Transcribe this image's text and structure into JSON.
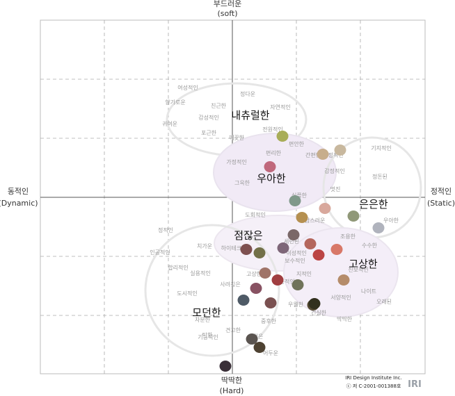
{
  "axes": {
    "top": {
      "line1": "부드러운",
      "line2": "(soft)"
    },
    "bottom": {
      "line1": "딱딱한",
      "line2": "(Hard)"
    },
    "left": {
      "line1": "동적인",
      "line2": "(Dynamic)"
    },
    "right": {
      "line1": "정적인",
      "line2": "(Static)"
    }
  },
  "groups": [
    {
      "key": "natural",
      "label": "내츄럴한"
    },
    {
      "key": "elegant",
      "label": "우아한"
    },
    {
      "key": "subtle",
      "label": "은은한"
    },
    {
      "key": "decent",
      "label": "점잖은"
    },
    {
      "key": "classy",
      "label": "고상한"
    },
    {
      "key": "modern",
      "label": "모던한"
    }
  ],
  "words": [
    "여성적인",
    "정다운",
    "향기로운",
    "친근한",
    "자연적인",
    "감성적인",
    "귀여운",
    "포근한",
    "전원적인",
    "깨끗한",
    "편안한",
    "간편한",
    "편리한",
    "가정적인",
    "안정적인",
    "기지적인",
    "감정적인",
    "정돈된",
    "그윽한",
    "멋진",
    "심플한",
    "도회적인",
    "고급스러운",
    "우아한",
    "정적인",
    "세련된",
    "치가운",
    "조용한",
    "하이테크한",
    "이성적인",
    "수수한",
    "인공적인",
    "합리적인",
    "보수적인",
    "고상한",
    "실용적인",
    "진보적인",
    "지적인",
    "전통적인",
    "사려깊은",
    "도시적인",
    "나이트",
    "서양적인",
    "차분한",
    "오래된",
    "우월한",
    "기능적인",
    "건실한",
    "중후한",
    "견고한",
    "딱딱한",
    "검은",
    "어두운",
    "탁한"
  ],
  "swatches": [
    "#a8ad58",
    "#c7ad8c",
    "#c8b89e",
    "#c0687c",
    "#80998a",
    "#d8a89c",
    "#909878",
    "#b0b3bd",
    "#b59050",
    "#7a6868",
    "#727048",
    "#b4665c",
    "#7e6678",
    "#7e5050",
    "#bb4444",
    "#d87868",
    "#a07468",
    "#885262",
    "#a03e40",
    "#7a5050",
    "#70735a",
    "#b58c6a",
    "#4e5a66",
    "#554a32",
    "#5a5450",
    "#4e4232",
    "#3a3038",
    "#32301e"
  ],
  "footer": {
    "line1": "IRI Design Institute Inc.",
    "line2": "ⓒ 저 C-2001-001388호",
    "logo": "IRI"
  }
}
